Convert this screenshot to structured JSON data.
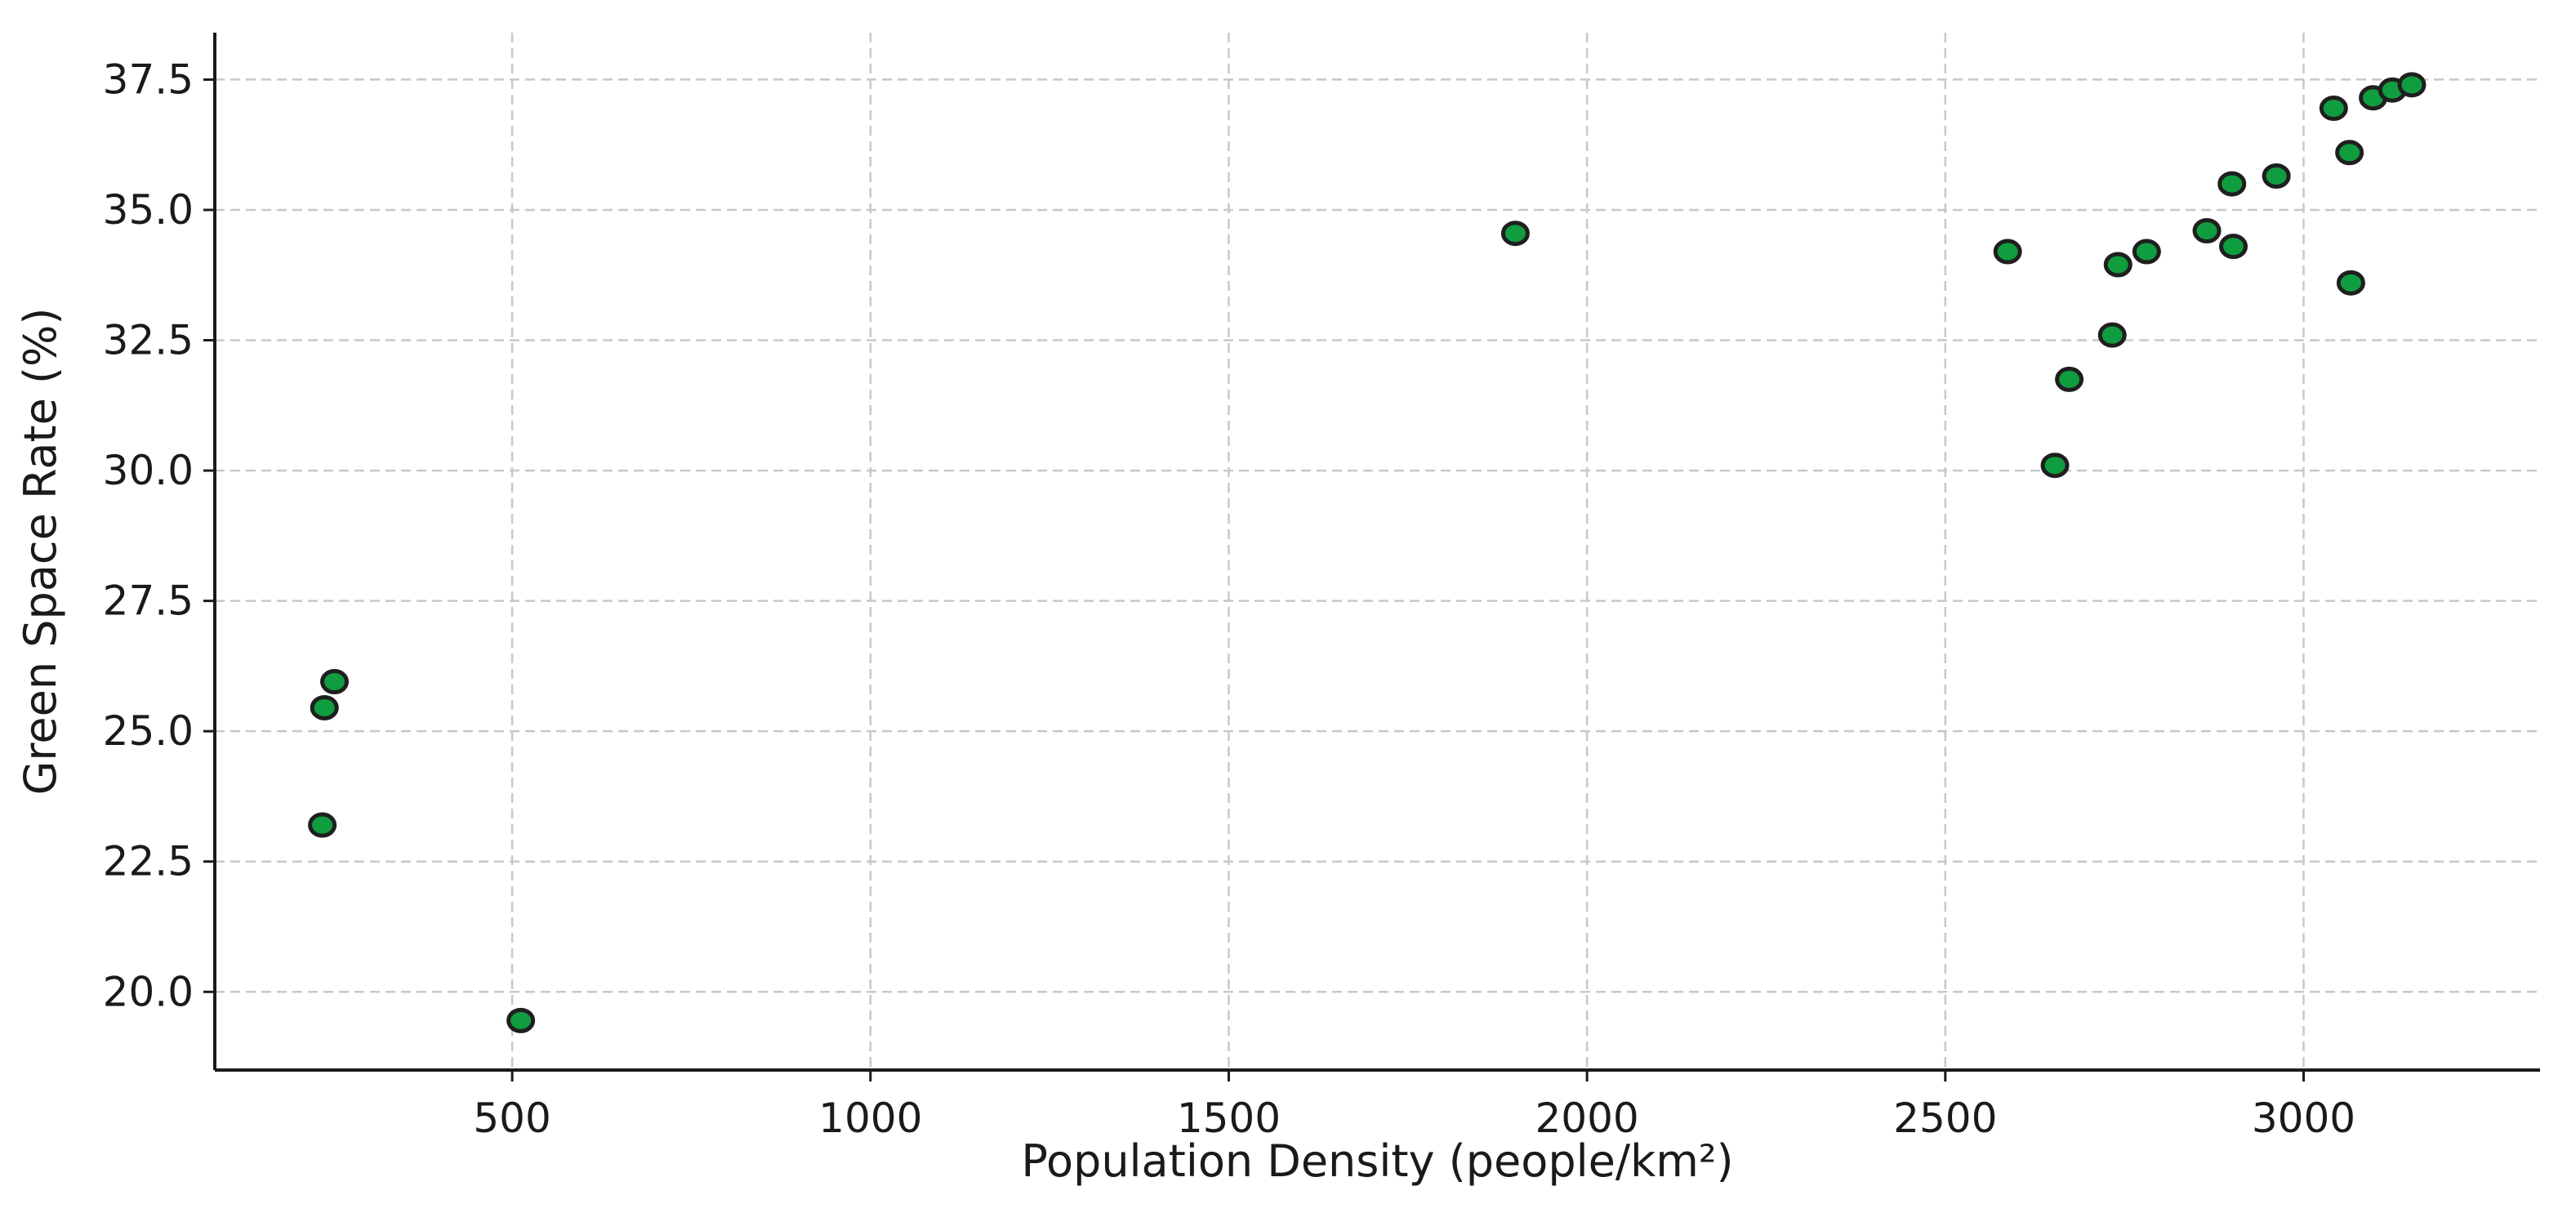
{
  "chart_data": {
    "type": "scatter",
    "title": "",
    "xlabel": "Population Density (people/km²)",
    "ylabel": "Green Space Rate (%)",
    "xlim": [
      85,
      3330
    ],
    "ylim": [
      18.5,
      38.4
    ],
    "xticks": [
      500,
      1000,
      1500,
      2000,
      2500,
      3000
    ],
    "xtick_labels": [
      "500",
      "1000",
      "1500",
      "2000",
      "2500",
      "3000"
    ],
    "yticks": [
      20.0,
      22.5,
      25.0,
      27.5,
      30.0,
      32.5,
      35.0,
      37.5
    ],
    "ytick_labels": [
      "20.0",
      "22.5",
      "25.0",
      "27.5",
      "30.0",
      "32.5",
      "35.0",
      "37.5"
    ],
    "grid": true,
    "marker_color": "#0f9d3f",
    "marker_edge_color": "#1f1f1f",
    "points": [
      {
        "x": 235,
        "y": 23.2
      },
      {
        "x": 238,
        "y": 25.45
      },
      {
        "x": 252,
        "y": 25.95
      },
      {
        "x": 512,
        "y": 19.45
      },
      {
        "x": 1900,
        "y": 34.55
      },
      {
        "x": 2587,
        "y": 34.2
      },
      {
        "x": 2653,
        "y": 30.1
      },
      {
        "x": 2673,
        "y": 31.75
      },
      {
        "x": 2733,
        "y": 32.6
      },
      {
        "x": 2741,
        "y": 33.95
      },
      {
        "x": 2781,
        "y": 34.2
      },
      {
        "x": 2865,
        "y": 34.6
      },
      {
        "x": 2900,
        "y": 35.5
      },
      {
        "x": 2902,
        "y": 34.3
      },
      {
        "x": 2962,
        "y": 35.65
      },
      {
        "x": 3042,
        "y": 36.95
      },
      {
        "x": 3064,
        "y": 36.1
      },
      {
        "x": 3066,
        "y": 33.6
      },
      {
        "x": 3097,
        "y": 37.15
      },
      {
        "x": 3124,
        "y": 37.3
      },
      {
        "x": 3151,
        "y": 37.4
      }
    ]
  }
}
